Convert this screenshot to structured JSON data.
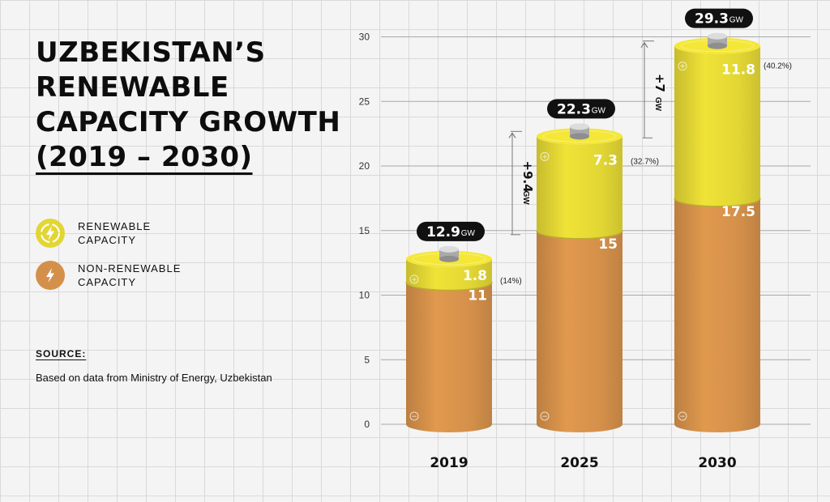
{
  "title": {
    "line1": "UZBEKISTAN’S",
    "line2": "RENEWABLE",
    "line3": "CAPACITY GROWTH",
    "line4": "(2019 – 2030)"
  },
  "legend": [
    {
      "label": "RENEWABLE CAPACITY",
      "icon": "lightning-recycle-icon",
      "color": "#e2d634"
    },
    {
      "label": "NON-RENEWABLE CAPACITY",
      "icon": "lightning-icon",
      "color": "#d4904a"
    }
  ],
  "source": {
    "label": "SOURCE:",
    "text": "Based on data from Ministry of Energy, Uzbekistan"
  },
  "chart_data": {
    "type": "bar",
    "stacked": true,
    "categories": [
      "2019",
      "2025",
      "2030"
    ],
    "series": [
      {
        "name": "NON-RENEWABLE CAPACITY",
        "values": [
          11,
          15,
          17.5
        ],
        "color": "#d4904a"
      },
      {
        "name": "RENEWABLE CAPACITY",
        "values": [
          1.8,
          7.3,
          11.8
        ],
        "color": "#e2d634"
      }
    ],
    "totals": [
      "12.9",
      "22.3",
      "29.3"
    ],
    "total_unit": "GW",
    "non_renewable_labels": [
      "11",
      "15",
      "17.5"
    ],
    "renewable_labels": [
      "1.8",
      "7.3",
      "11.8"
    ],
    "renewable_share_labels": [
      "(14%)",
      "(32.7%)",
      "(40.2%)"
    ],
    "growth_annotations": [
      {
        "from": "2019",
        "to": "2025",
        "value": "+9.4",
        "unit": "GW"
      },
      {
        "from": "2025",
        "to": "2030",
        "value": "+7",
        "unit": "GW"
      }
    ],
    "ylim": [
      0,
      30
    ],
    "yticks": [
      0,
      5,
      10,
      15,
      20,
      25,
      30
    ],
    "grid": true,
    "legend_position": "left"
  }
}
